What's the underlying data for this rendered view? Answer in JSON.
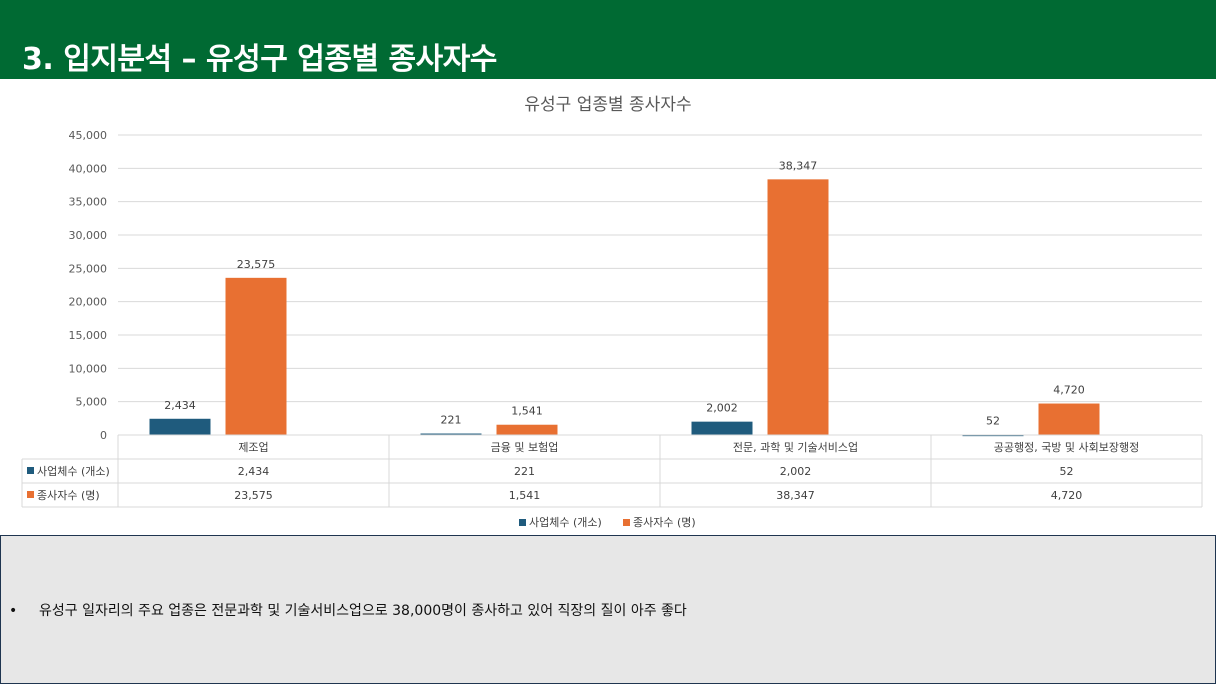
{
  "header": {
    "title": "3. 입지분석 – 유성구 업종별 종사자수"
  },
  "chart_data": {
    "type": "bar",
    "title": "유성구 업종별 종사자수",
    "categories": [
      "제조업",
      "금융 및 보험업",
      "전문, 과학 및 기술서비스업",
      "공공행정, 국방 및 사회보장행정"
    ],
    "series": [
      {
        "name": "사업체수 (개소)",
        "color": "#1f5b7d",
        "values": [
          2434,
          221,
          2002,
          52
        ],
        "labels": [
          "2,434",
          "221",
          "2,002",
          "52"
        ]
      },
      {
        "name": "종사자수 (명)",
        "color": "#e87032",
        "values": [
          23575,
          1541,
          38347,
          4720
        ],
        "labels": [
          "23,575",
          "1,541",
          "38,347",
          "4,720"
        ]
      }
    ],
    "ylim": [
      0,
      45000
    ],
    "yticks": [
      "0",
      "5,000",
      "10,000",
      "15,000",
      "20,000",
      "25,000",
      "30,000",
      "35,000",
      "40,000",
      "45,000"
    ],
    "grid": true,
    "legend": "bottom",
    "data_table": true
  },
  "summary": {
    "bullet": "•",
    "text": "유성구 일자리의 주요 업종은 전문과학 및 기술서비스업으로 38,000명이  종사하고 있어 직장의 질이 아주 좋다"
  }
}
